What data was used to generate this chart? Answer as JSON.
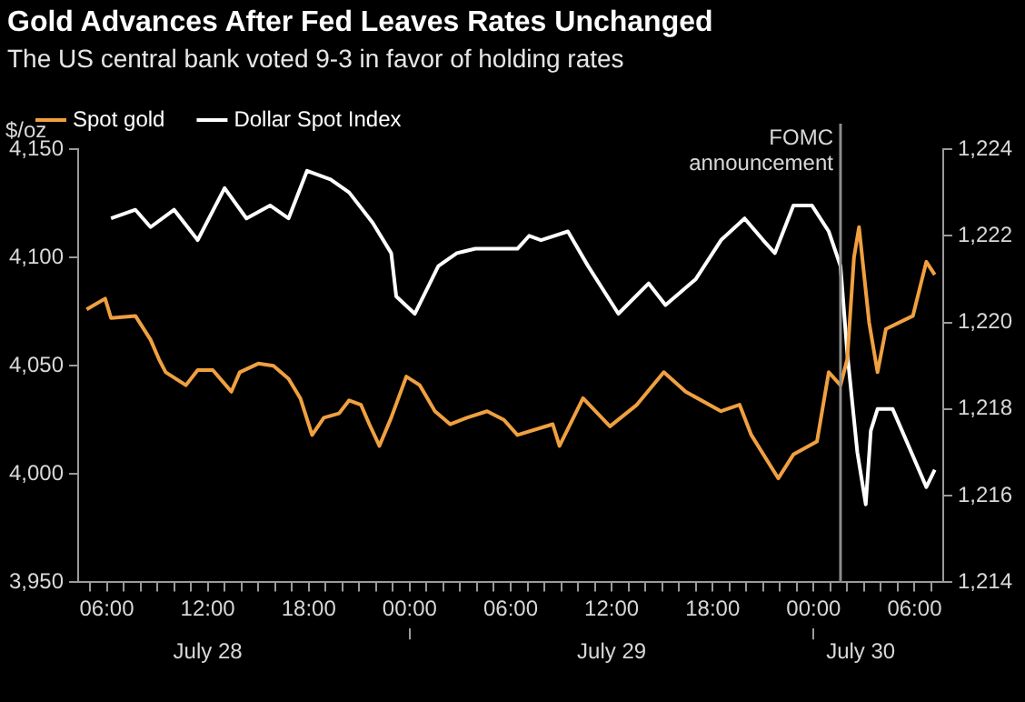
{
  "chart_data": {
    "type": "line",
    "title": "Gold Advances After Fed Leaves Rates Unchanged",
    "subtitle": "The US central bank voted 9-3 in favor of holding rates",
    "ylabel": "$/oz",
    "legend": "top",
    "marker": "none",
    "grid": false,
    "xlim": [
      "--07-28T04:18",
      "--07-30T07:42"
    ],
    "xticks": [
      {
        "value": "--07-28T05:00",
        "label": null
      },
      {
        "value": "--07-28T06:00",
        "label": "06:00"
      },
      {
        "value": "--07-28T07:00",
        "label": null
      },
      {
        "value": "--07-28T08:00",
        "label": null
      },
      {
        "value": "--07-28T09:00",
        "label": null
      },
      {
        "value": "--07-28T10:00",
        "label": null
      },
      {
        "value": "--07-28T11:00",
        "label": null
      },
      {
        "value": "--07-28T12:00",
        "label": "12:00"
      },
      {
        "value": "--07-28T13:00",
        "label": null
      },
      {
        "value": "--07-28T14:00",
        "label": null
      },
      {
        "value": "--07-28T15:00",
        "label": null
      },
      {
        "value": "--07-28T16:00",
        "label": null
      },
      {
        "value": "--07-28T17:00",
        "label": null
      },
      {
        "value": "--07-28T18:00",
        "label": "18:00"
      },
      {
        "value": "--07-28T19:00",
        "label": null
      },
      {
        "value": "--07-28T20:00",
        "label": null
      },
      {
        "value": "--07-28T21:00",
        "label": null
      },
      {
        "value": "--07-28T22:00",
        "label": null
      },
      {
        "value": "--07-28T23:00",
        "label": null
      },
      {
        "value": "--07-29T00:00",
        "label": "00:00"
      },
      {
        "value": "--07-29T01:00",
        "label": null
      },
      {
        "value": "--07-29T02:00",
        "label": null
      },
      {
        "value": "--07-29T03:00",
        "label": null
      },
      {
        "value": "--07-29T04:00",
        "label": null
      },
      {
        "value": "--07-29T05:00",
        "label": null
      },
      {
        "value": "--07-29T06:00",
        "label": "06:00"
      },
      {
        "value": "--07-29T07:00",
        "label": null
      },
      {
        "value": "--07-29T08:00",
        "label": null
      },
      {
        "value": "--07-29T09:00",
        "label": null
      },
      {
        "value": "--07-29T10:00",
        "label": null
      },
      {
        "value": "--07-29T11:00",
        "label": null
      },
      {
        "value": "--07-29T12:00",
        "label": "12:00"
      },
      {
        "value": "--07-29T13:00",
        "label": null
      },
      {
        "value": "--07-29T14:00",
        "label": null
      },
      {
        "value": "--07-29T15:00",
        "label": null
      },
      {
        "value": "--07-29T16:00",
        "label": null
      },
      {
        "value": "--07-29T17:00",
        "label": null
      },
      {
        "value": "--07-29T18:00",
        "label": "18:00"
      },
      {
        "value": "--07-29T19:00",
        "label": null
      },
      {
        "value": "--07-29T20:00",
        "label": null
      },
      {
        "value": "--07-29T21:00",
        "label": null
      },
      {
        "value": "--07-29T22:00",
        "label": null
      },
      {
        "value": "--07-29T23:00",
        "label": null
      },
      {
        "value": "--07-30T00:00",
        "label": "00:00"
      },
      {
        "value": "--07-30T01:00",
        "label": null
      },
      {
        "value": "--07-30T02:00",
        "label": null
      },
      {
        "value": "--07-30T03:00",
        "label": null
      },
      {
        "value": "--07-30T04:00",
        "label": null
      },
      {
        "value": "--07-30T05:00",
        "label": null
      },
      {
        "value": "--07-30T06:00",
        "label": "06:00"
      },
      {
        "value": "--07-30T07:00",
        "label": null
      }
    ],
    "x2lim": [
      "--07-28T04:18",
      "--07-30T07:42"
    ],
    "x2ticks": [
      {
        "value": "--07-28T12:00",
        "label": "July 28"
      },
      {
        "value": "--07-29T00:00",
        "label": null
      },
      {
        "value": "--07-29T12:00",
        "label": "July 29"
      },
      {
        "value": "--07-30T00:00",
        "label": null
      },
      {
        "value": "--07-30T02:48",
        "label": "July 30"
      }
    ],
    "ylim": [
      3950,
      4150
    ],
    "yticks": [
      {
        "value": 3950,
        "label": "3,950"
      },
      {
        "value": 4000,
        "label": "4,000"
      },
      {
        "value": 4050,
        "label": "4,050"
      },
      {
        "value": 4100,
        "label": "4,100"
      },
      {
        "value": 4150,
        "label": "4,150"
      }
    ],
    "y2lim": [
      1214,
      1224
    ],
    "y2ticks": [
      {
        "value": 1214,
        "label": "1,214"
      },
      {
        "value": 1216,
        "label": "1,216"
      },
      {
        "value": 1218,
        "label": "1,218"
      },
      {
        "value": 1220,
        "label": "1,220"
      },
      {
        "value": 1222,
        "label": "1,222"
      },
      {
        "value": 1224,
        "label": "1,224"
      }
    ],
    "ref_lines": [
      {
        "axis": "x",
        "value": "--07-30T01:36",
        "label": "FOMC announcement",
        "color": "#8c8c8c"
      }
    ],
    "series": [
      {
        "name": "Spot gold",
        "color": "#f0a040",
        "x": [
          "--07-28T04:48",
          "--07-28T05:54",
          "--07-28T06:15",
          "--07-28T07:42",
          "--07-28T08:36",
          "--07-28T09:06",
          "--07-28T09:30",
          "--07-28T10:42",
          "--07-28T11:24",
          "--07-28T12:18",
          "--07-28T13:24",
          "--07-28T13:54",
          "--07-28T15:00",
          "--07-28T15:54",
          "--07-28T16:48",
          "--07-28T17:30",
          "--07-28T18:12",
          "--07-28T18:54",
          "--07-28T19:48",
          "--07-28T20:24",
          "--07-28T21:06",
          "--07-28T21:36",
          "--07-28T22:12",
          "--07-28T22:54",
          "--07-28T23:48",
          "--07-29T00:36",
          "--07-29T01:30",
          "--07-29T02:24",
          "--07-29T03:24",
          "--07-29T04:36",
          "--07-29T05:36",
          "--07-29T06:24",
          "--07-29T08:30",
          "--07-29T08:54",
          "--07-29T10:18",
          "--07-29T11:54",
          "--07-29T13:30",
          "--07-29T15:06",
          "--07-29T16:24",
          "--07-29T18:30",
          "--07-29T19:36",
          "--07-29T20:18",
          "--07-29T21:54",
          "--07-29T22:48",
          "--07-30T00:12",
          "--07-30T00:54",
          "--07-30T01:36",
          "--07-30T02:00",
          "--07-30T02:24",
          "--07-30T02:42",
          "--07-30T03:18",
          "--07-30T03:48",
          "--07-30T04:18",
          "--07-30T05:54",
          "--07-30T06:42",
          "--07-30T07:12"
        ],
        "values": [
          4076,
          4081,
          4072,
          4073,
          4062,
          4053,
          4047,
          4041,
          4048,
          4048,
          4038,
          4047,
          4051,
          4050,
          4044,
          4035,
          4018,
          4026,
          4028,
          4034,
          4032,
          4023,
          4013,
          4026,
          4045,
          4041,
          4029,
          4023,
          4026,
          4029,
          4025,
          4018,
          4023,
          4013,
          4035,
          4022,
          4032,
          4047,
          4038,
          4029,
          4032,
          4018,
          3998,
          4009,
          4015,
          4047,
          4041,
          4053,
          4100,
          4114,
          4070,
          4047,
          4067,
          4073,
          4098,
          4092
        ]
      },
      {
        "name": "Dollar Spot Index",
        "color": "#ffffff",
        "axis": "y2",
        "x": [
          "--07-28T06:15",
          "--07-28T07:42",
          "--07-28T08:36",
          "--07-28T10:00",
          "--07-28T11:24",
          "--07-28T13:00",
          "--07-28T14:18",
          "--07-28T15:42",
          "--07-28T16:48",
          "--07-28T17:54",
          "--07-28T19:18",
          "--07-28T20:24",
          "--07-28T21:48",
          "--07-28T22:54",
          "--07-28T23:12",
          "--07-29T00:18",
          "--07-29T01:42",
          "--07-29T02:48",
          "--07-29T03:54",
          "--07-29T06:00",
          "--07-29T06:24",
          "--07-29T07:06",
          "--07-29T07:48",
          "--07-29T09:24",
          "--07-29T10:36",
          "--07-29T12:24",
          "--07-29T14:12",
          "--07-29T15:12",
          "--07-29T17:00",
          "--07-29T18:30",
          "--07-29T19:54",
          "--07-29T21:00",
          "--07-29T21:42",
          "--07-29T22:48",
          "--07-29T23:54",
          "--07-30T00:54",
          "--07-30T01:36",
          "--07-30T02:00",
          "--07-30T02:36",
          "--07-30T03:06",
          "--07-30T03:24",
          "--07-30T03:48",
          "--07-30T04:42",
          "--07-30T06:42",
          "--07-30T07:12"
        ],
        "values": [
          1222.4,
          1222.6,
          1222.2,
          1222.6,
          1221.9,
          1223.1,
          1222.4,
          1222.7,
          1222.4,
          1223.5,
          1223.3,
          1223.0,
          1222.3,
          1221.6,
          1220.6,
          1220.2,
          1221.3,
          1221.6,
          1221.7,
          1221.7,
          1221.7,
          1222.0,
          1221.9,
          1222.1,
          1221.3,
          1220.2,
          1220.9,
          1220.4,
          1221.0,
          1221.9,
          1222.4,
          1221.9,
          1221.6,
          1222.7,
          1222.7,
          1222.1,
          1221.3,
          1219.3,
          1217.0,
          1215.8,
          1217.5,
          1218.0,
          1218.0,
          1216.2,
          1216.6
        ]
      }
    ]
  }
}
